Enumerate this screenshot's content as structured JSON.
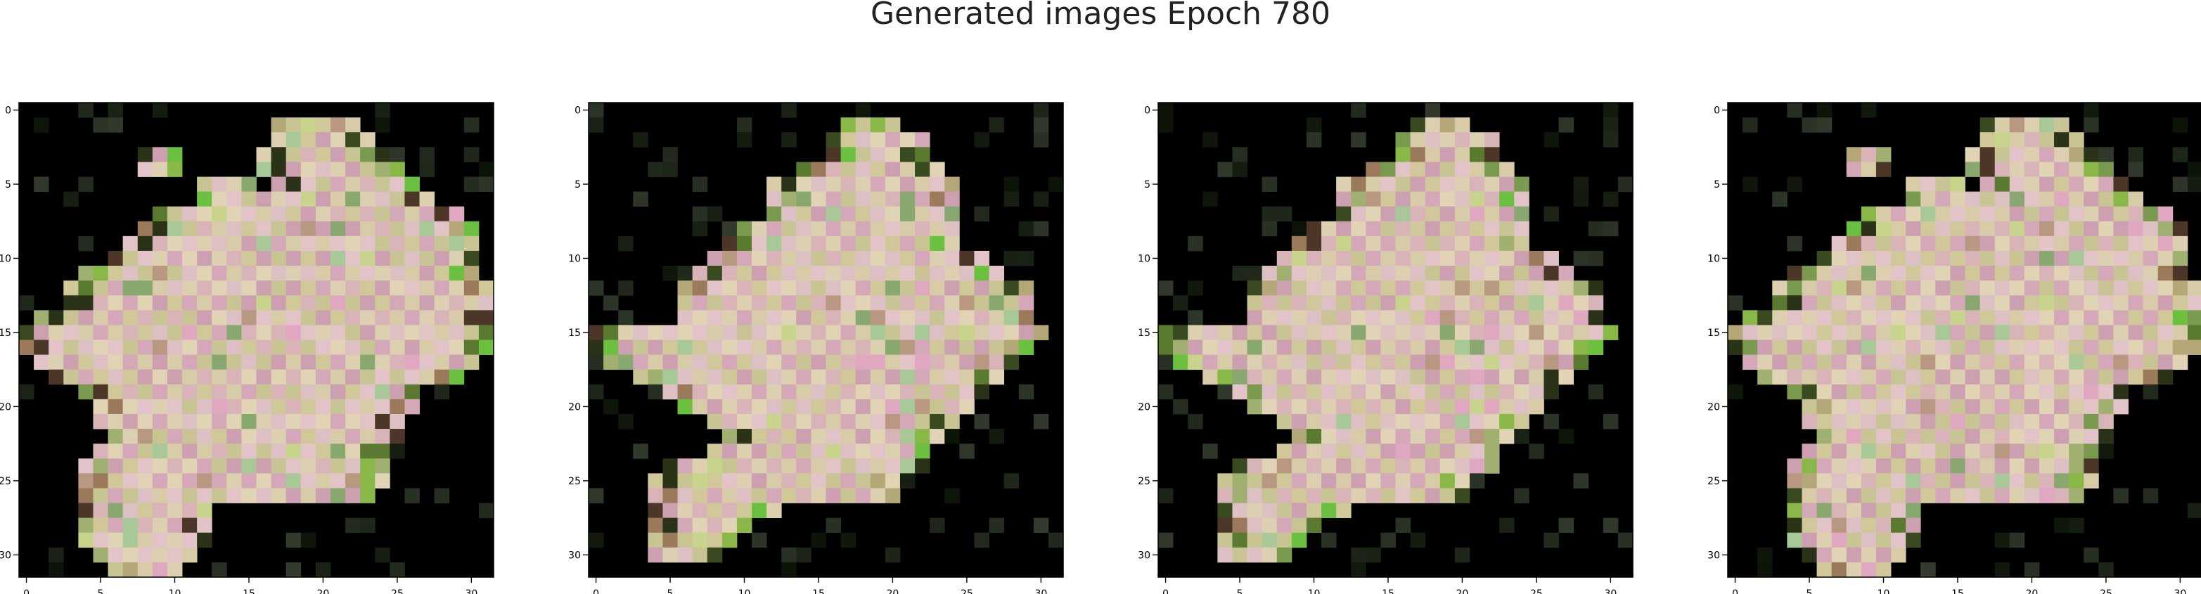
{
  "figure": {
    "title": "Generated images Epoch 780"
  },
  "chart_data": [
    {
      "type": "heatmap",
      "title": "",
      "xlabel": "",
      "ylabel": "",
      "xlim": [
        -0.5,
        31.5
      ],
      "ylim": [
        31.5,
        -0.5
      ],
      "x_ticks": [
        "0",
        "5",
        "10",
        "15",
        "20",
        "25",
        "30"
      ],
      "y_ticks": [
        "0",
        "5",
        "10",
        "15",
        "20",
        "25",
        "30"
      ],
      "grid": false,
      "content": "generated image 1 (32x32 RGB)"
    },
    {
      "type": "heatmap",
      "title": "",
      "xlabel": "",
      "ylabel": "",
      "xlim": [
        -0.5,
        31.5
      ],
      "ylim": [
        31.5,
        -0.5
      ],
      "x_ticks": [
        "0",
        "5",
        "10",
        "15",
        "20",
        "25",
        "30"
      ],
      "y_ticks": [
        "0",
        "5",
        "10",
        "15",
        "20",
        "25",
        "30"
      ],
      "grid": false,
      "content": "generated image 2 (32x32 RGB)"
    },
    {
      "type": "heatmap",
      "title": "",
      "xlabel": "",
      "ylabel": "",
      "xlim": [
        -0.5,
        31.5
      ],
      "ylim": [
        31.5,
        -0.5
      ],
      "x_ticks": [
        "0",
        "5",
        "10",
        "15",
        "20",
        "25",
        "30"
      ],
      "y_ticks": [
        "0",
        "5",
        "10",
        "15",
        "20",
        "25",
        "30"
      ],
      "grid": false,
      "content": "generated image 3 (32x32 RGB)"
    },
    {
      "type": "heatmap",
      "title": "",
      "xlabel": "",
      "ylabel": "",
      "xlim": [
        -0.5,
        31.5
      ],
      "ylim": [
        31.5,
        -0.5
      ],
      "x_ticks": [
        "0",
        "5",
        "10",
        "15",
        "20",
        "25",
        "30"
      ],
      "y_ticks": [
        "0",
        "5",
        "10",
        "15",
        "20",
        "25",
        "30"
      ],
      "grid": false,
      "content": "generated image 4 (32x32 RGB)"
    }
  ],
  "colors": {
    "background": "#000000",
    "flower_pink": "#d8b0b4",
    "flower_cream": "#d8cca8",
    "leaf_green": "#6a9040"
  }
}
